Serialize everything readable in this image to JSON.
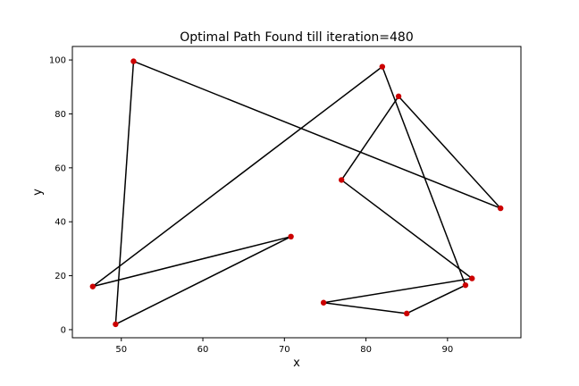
{
  "chart_data": {
    "type": "line",
    "title": "Optimal Path Found till iteration=480",
    "xlabel": "x",
    "ylabel": "y",
    "xlim": [
      44,
      99
    ],
    "ylim": [
      -3,
      105
    ],
    "xticks": [
      50,
      60,
      70,
      80,
      90
    ],
    "yticks": [
      0,
      20,
      40,
      60,
      80,
      100
    ],
    "grid": false,
    "colors": {
      "path": "#000000",
      "node": "#cc0000"
    },
    "path": [
      {
        "x": 46.5,
        "y": 16
      },
      {
        "x": 82,
        "y": 97.5
      },
      {
        "x": 92.2,
        "y": 16.5
      },
      {
        "x": 85,
        "y": 6
      },
      {
        "x": 74.8,
        "y": 10
      },
      {
        "x": 93,
        "y": 19
      },
      {
        "x": 77,
        "y": 55.5
      },
      {
        "x": 84,
        "y": 86.5
      },
      {
        "x": 96.5,
        "y": 45
      },
      {
        "x": 51.5,
        "y": 99.5
      },
      {
        "x": 49.3,
        "y": 2
      },
      {
        "x": 70.8,
        "y": 34.5
      },
      {
        "x": 46.5,
        "y": 16
      }
    ],
    "nodes": [
      {
        "x": 46.5,
        "y": 16
      },
      {
        "x": 82,
        "y": 97.5
      },
      {
        "x": 92.2,
        "y": 16.5
      },
      {
        "x": 85,
        "y": 6
      },
      {
        "x": 74.8,
        "y": 10
      },
      {
        "x": 93,
        "y": 19
      },
      {
        "x": 77,
        "y": 55.5
      },
      {
        "x": 84,
        "y": 86.5
      },
      {
        "x": 96.5,
        "y": 45
      },
      {
        "x": 51.5,
        "y": 99.5
      },
      {
        "x": 49.3,
        "y": 2
      },
      {
        "x": 70.8,
        "y": 34.5
      }
    ]
  }
}
